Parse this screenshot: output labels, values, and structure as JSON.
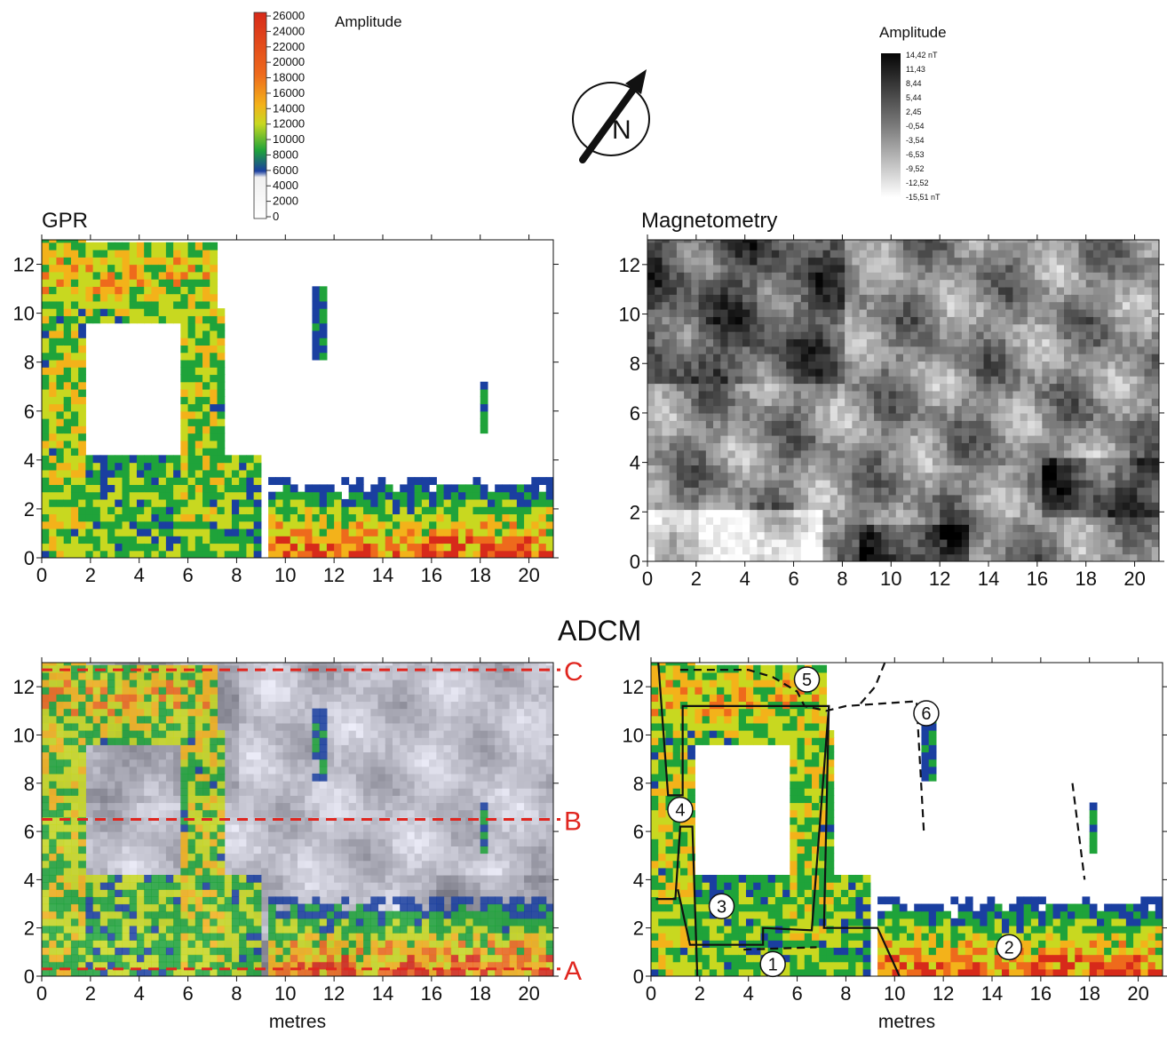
{
  "figure": {
    "center_title": "ADCM",
    "north_label": "N"
  },
  "gpr_legend": {
    "title": "Amplitude",
    "ticks": [
      "26000",
      "24000",
      "22000",
      "20000",
      "18000",
      "16000",
      "14000",
      "12000",
      "10000",
      "8000",
      "6000",
      "4000",
      "2000",
      "0"
    ]
  },
  "mag_legend": {
    "title": "Amplitude",
    "ticks": [
      "14,42 nT",
      "11,43",
      "8,44",
      "5,44",
      "2,45",
      "-0,54",
      "-3,54",
      "-6,53",
      "-9,52",
      "-12,52",
      "-15,51 nT"
    ]
  },
  "section_labels": {
    "A": "A",
    "B": "B",
    "C": "C"
  },
  "callouts": [
    "1",
    "2",
    "3",
    "4",
    "5",
    "6"
  ],
  "colors": {
    "gpr_scale": [
      "#ffffff",
      "#ffffff",
      "#1a3fa0",
      "#1fa33a",
      "#c8d820",
      "#f3b21a",
      "#ee6a1c",
      "#d72a1a"
    ],
    "section_lines": "#e0261f",
    "mag_dark": "#0a0a0a",
    "mag_light": "#ffffff"
  },
  "chart_data": [
    {
      "type": "heatmap",
      "title": "GPR",
      "xlabel": "",
      "ylabel": "",
      "xlim": [
        0,
        21
      ],
      "ylim": [
        0,
        13
      ],
      "x_ticks": [
        "0",
        "2",
        "4",
        "6",
        "8",
        "10",
        "12",
        "14",
        "16",
        "18",
        "20"
      ],
      "y_ticks": [
        "0",
        "2",
        "4",
        "6",
        "8",
        "10",
        "12"
      ],
      "colorbar_range": [
        0,
        26000
      ]
    },
    {
      "type": "heatmap",
      "title": "Magnetometry",
      "xlabel": "",
      "ylabel": "",
      "xlim": [
        0,
        21
      ],
      "ylim": [
        0,
        13
      ],
      "x_ticks": [
        "0",
        "2",
        "4",
        "6",
        "8",
        "10",
        "12",
        "14",
        "16",
        "18",
        "20"
      ],
      "y_ticks": [
        "0",
        "2",
        "4",
        "6",
        "8",
        "10",
        "12"
      ],
      "colorbar_range": [
        -15.51,
        14.42
      ],
      "colorbar_unit": "nT"
    },
    {
      "type": "heatmap",
      "title": "",
      "xlabel": "metres",
      "ylabel": "",
      "xlim": [
        0,
        21
      ],
      "ylim": [
        0,
        13
      ],
      "x_ticks": [
        "0",
        "2",
        "4",
        "6",
        "8",
        "10",
        "12",
        "14",
        "16",
        "18",
        "20"
      ],
      "y_ticks": [
        "0",
        "2",
        "4",
        "6",
        "8",
        "10",
        "12"
      ],
      "section_lines": [
        {
          "label": "A",
          "y": 0.3
        },
        {
          "label": "B",
          "y": 6.5
        },
        {
          "label": "C",
          "y": 12.7
        }
      ]
    },
    {
      "type": "heatmap",
      "title": "",
      "xlabel": "metres",
      "ylabel": "",
      "xlim": [
        0,
        21
      ],
      "ylim": [
        0,
        13
      ],
      "x_ticks": [
        "0",
        "2",
        "4",
        "6",
        "8",
        "10",
        "12",
        "14",
        "16",
        "18",
        "20"
      ],
      "y_ticks": [
        "0",
        "2",
        "4",
        "6",
        "8",
        "10",
        "12"
      ],
      "annotations": [
        {
          "label": "1",
          "x": 5.0,
          "y": 0.5
        },
        {
          "label": "2",
          "x": 14.7,
          "y": 1.2
        },
        {
          "label": "3",
          "x": 2.9,
          "y": 2.9
        },
        {
          "label": "4",
          "x": 1.2,
          "y": 6.9
        },
        {
          "label": "5",
          "x": 6.4,
          "y": 12.3
        },
        {
          "label": "6",
          "x": 11.3,
          "y": 10.9
        }
      ]
    }
  ]
}
